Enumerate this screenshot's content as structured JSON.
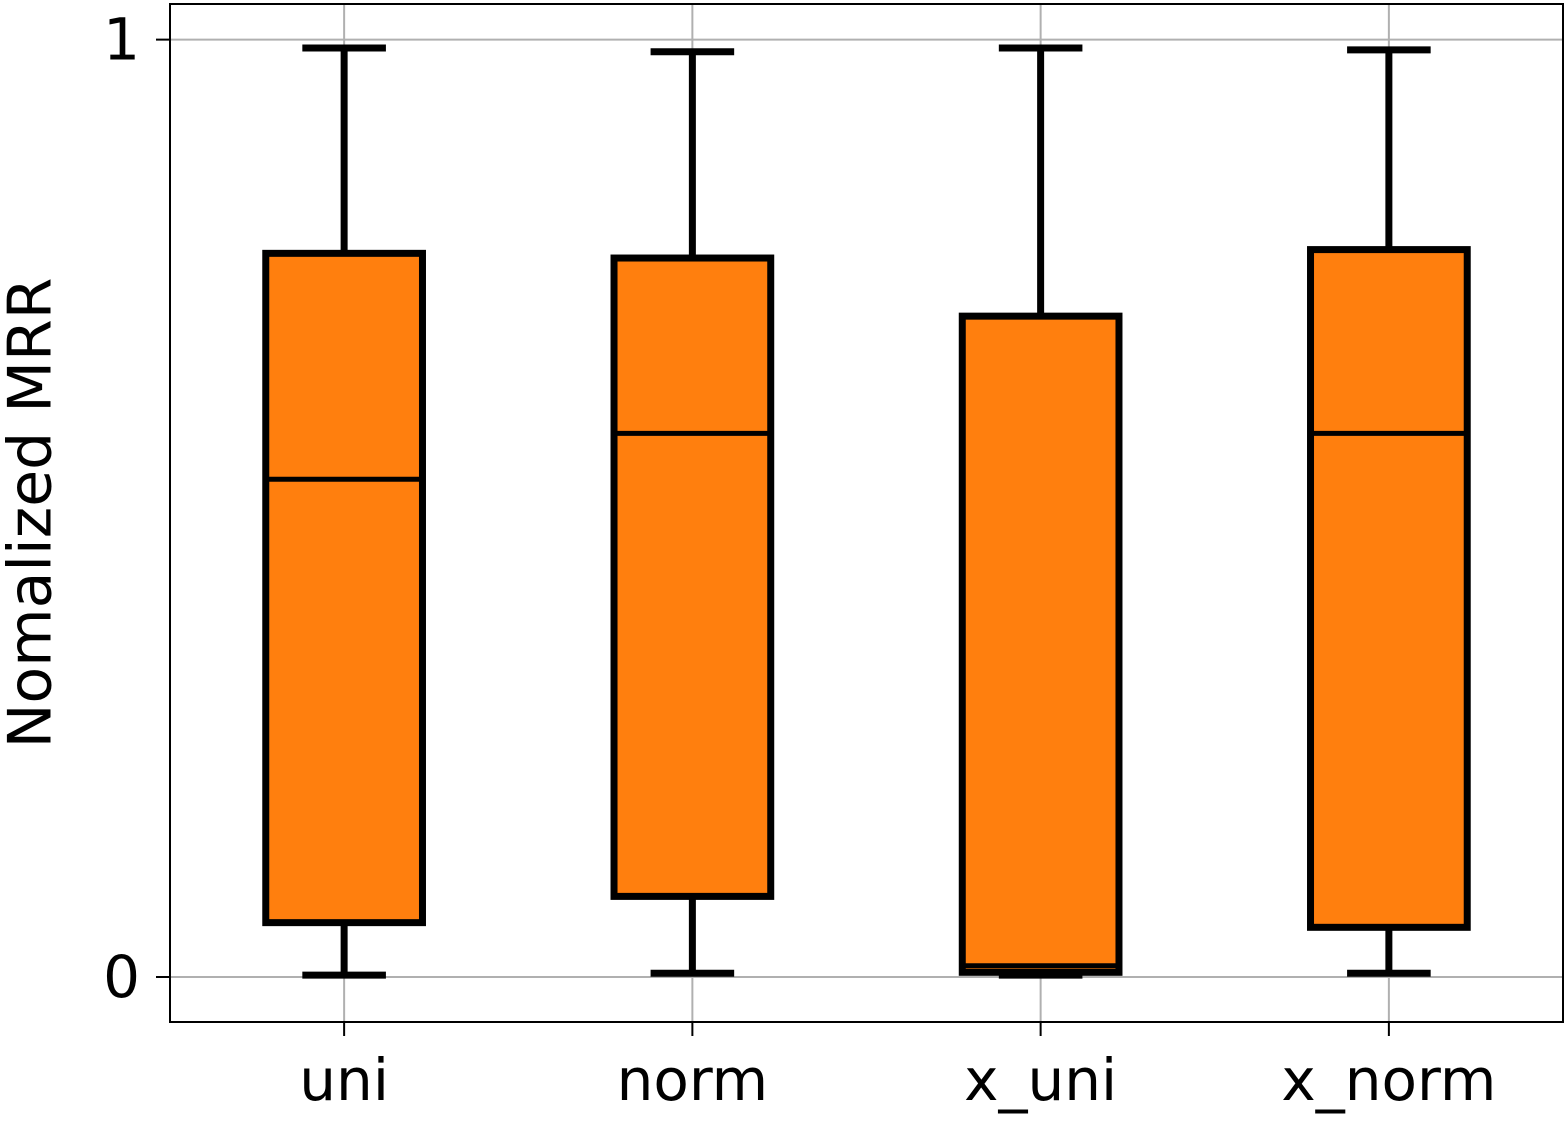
{
  "chart_data": {
    "type": "box",
    "y_label": "Nomalized MRR",
    "categories": [
      "uni",
      "norm",
      "x_uni",
      "x_norm"
    ],
    "boxes": [
      {
        "whislo": 0.002,
        "q1": 0.058,
        "med": 0.531,
        "q3": 0.772,
        "whishi": 0.991
      },
      {
        "whislo": 0.004,
        "q1": 0.086,
        "med": 0.58,
        "q3": 0.767,
        "whishi": 0.987
      },
      {
        "whislo": 0.002,
        "q1": 0.005,
        "med": 0.012,
        "q3": 0.705,
        "whishi": 0.991
      },
      {
        "whislo": 0.004,
        "q1": 0.053,
        "med": 0.58,
        "q3": 0.776,
        "whishi": 0.989
      }
    ],
    "color": "#ff7f0e",
    "ylim": [
      -0.048,
      1.038
    ],
    "yticks": [
      0,
      1
    ],
    "grid": true
  }
}
